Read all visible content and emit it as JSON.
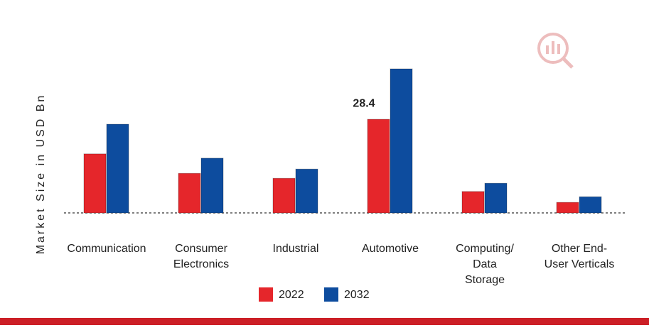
{
  "chart_data": {
    "type": "bar",
    "y_axis_label": "Market Size in USD Bn",
    "categories": [
      "Communication",
      "Consumer Electronics",
      "Industrial",
      "Automotive",
      "Computing/ Data Storage",
      "Other End-User Verticals"
    ],
    "series": [
      {
        "name": "2022",
        "color": "#e5262b",
        "values": [
          17.9,
          12.0,
          10.5,
          28.4,
          6.5,
          3.2
        ],
        "value_labels": [
          null,
          null,
          null,
          "28.4",
          null,
          null
        ]
      },
      {
        "name": "2032",
        "color": "#0d4c9e",
        "values": [
          26.9,
          16.6,
          13.3,
          43.7,
          9.0,
          4.9
        ]
      }
    ],
    "legend": "bottom"
  }
}
